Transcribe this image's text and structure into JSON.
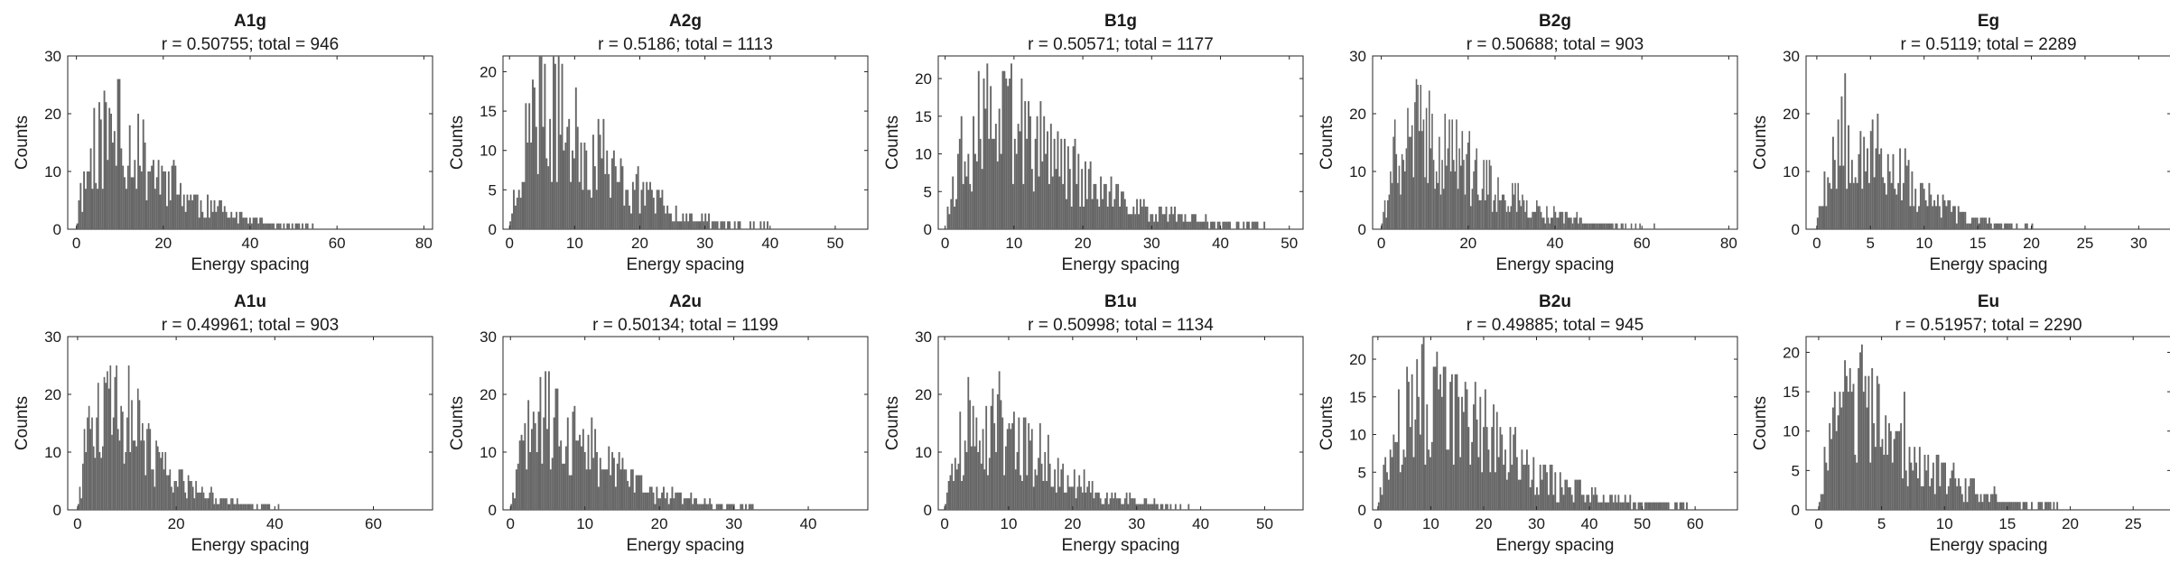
{
  "chart_data": [
    {
      "type": "bar",
      "title": "A1g",
      "subtitle": "r = 0.50755; total = 946",
      "xlabel": "Energy spacing",
      "ylabel": "Counts",
      "xlim": [
        -2,
        82
      ],
      "ylim": [
        0,
        30
      ],
      "xticks": [
        0,
        20,
        40,
        60,
        80
      ],
      "yticks": [
        0,
        10,
        20,
        30
      ],
      "bar_color": "#666666",
      "seed": 11,
      "hist": {
        "n": 946,
        "mode": 8,
        "xmax": 78,
        "peak": 26
      }
    },
    {
      "type": "bar",
      "title": "A2g",
      "subtitle": "r = 0.5186; total = 1113",
      "xlabel": "Energy spacing",
      "ylabel": "Counts",
      "xlim": [
        -1,
        55
      ],
      "ylim": [
        0,
        22
      ],
      "xticks": [
        0,
        10,
        20,
        30,
        40,
        50
      ],
      "yticks": [
        0,
        5,
        10,
        15,
        20
      ],
      "bar_color": "#666666",
      "seed": 23,
      "hist": {
        "n": 1113,
        "mode": 6,
        "xmax": 53,
        "peak": 22
      }
    },
    {
      "type": "bar",
      "title": "B1g",
      "subtitle": "r = 0.50571; total = 1177",
      "xlabel": "Energy spacing",
      "ylabel": "Counts",
      "xlim": [
        -1,
        52
      ],
      "ylim": [
        0,
        23
      ],
      "xticks": [
        0,
        10,
        20,
        30,
        40,
        50
      ],
      "yticks": [
        0,
        5,
        10,
        15,
        20
      ],
      "bar_color": "#666666",
      "seed": 37,
      "hist": {
        "n": 1177,
        "mode": 7,
        "xmax": 50,
        "peak": 23
      }
    },
    {
      "type": "bar",
      "title": "B2g",
      "subtitle": "r = 0.50688; total = 903",
      "xlabel": "Energy spacing",
      "ylabel": "Counts",
      "xlim": [
        -2,
        82
      ],
      "ylim": [
        0,
        30
      ],
      "xticks": [
        0,
        20,
        40,
        60,
        80
      ],
      "yticks": [
        0,
        10,
        20,
        30
      ],
      "bar_color": "#666666",
      "seed": 41,
      "hist": {
        "n": 903,
        "mode": 9,
        "xmax": 66,
        "peak": 26
      }
    },
    {
      "type": "bar",
      "title": "Eg",
      "subtitle": "r = 0.5119; total = 2289",
      "xlabel": "Energy spacing",
      "ylabel": "Counts",
      "xlim": [
        -1,
        33
      ],
      "ylim": [
        0,
        30
      ],
      "xticks": [
        0,
        5,
        10,
        15,
        20,
        25,
        30
      ],
      "yticks": [
        0,
        10,
        20,
        30
      ],
      "bar_color": "#666666",
      "seed": 53,
      "hist": {
        "n": 2289,
        "mode": 3,
        "xmax": 32,
        "peak": 27
      }
    },
    {
      "type": "bar",
      "title": "A1u",
      "subtitle": "r = 0.49961; total = 903",
      "xlabel": "Energy spacing",
      "ylabel": "Counts",
      "xlim": [
        -2,
        72
      ],
      "ylim": [
        0,
        30
      ],
      "xticks": [
        0,
        20,
        40,
        60
      ],
      "yticks": [
        0,
        10,
        20,
        30
      ],
      "bar_color": "#666666",
      "seed": 61,
      "hist": {
        "n": 903,
        "mode": 6,
        "xmax": 62,
        "peak": 27
      }
    },
    {
      "type": "bar",
      "title": "A2u",
      "subtitle": "r = 0.50134; total = 1199",
      "xlabel": "Energy spacing",
      "ylabel": "Counts",
      "xlim": [
        -1,
        48
      ],
      "ylim": [
        0,
        30
      ],
      "xticks": [
        0,
        10,
        20,
        30,
        40
      ],
      "yticks": [
        0,
        10,
        20,
        30
      ],
      "bar_color": "#666666",
      "seed": 73,
      "hist": {
        "n": 1199,
        "mode": 5,
        "xmax": 46,
        "peak": 24
      }
    },
    {
      "type": "bar",
      "title": "B1u",
      "subtitle": "r = 0.50998; total = 1134",
      "xlabel": "Energy spacing",
      "ylabel": "Counts",
      "xlim": [
        -1,
        56
      ],
      "ylim": [
        0,
        30
      ],
      "xticks": [
        0,
        10,
        20,
        30,
        40,
        50
      ],
      "yticks": [
        0,
        10,
        20,
        30
      ],
      "bar_color": "#666666",
      "seed": 89,
      "hist": {
        "n": 1134,
        "mode": 6,
        "xmax": 51,
        "peak": 24
      }
    },
    {
      "type": "bar",
      "title": "B2u",
      "subtitle": "r = 0.49885; total = 945",
      "xlabel": "Energy spacing",
      "ylabel": "Counts",
      "xlim": [
        -1,
        68
      ],
      "ylim": [
        0,
        23
      ],
      "xticks": [
        0,
        10,
        20,
        30,
        40,
        50,
        60
      ],
      "yticks": [
        0,
        5,
        10,
        15,
        20
      ],
      "bar_color": "#666666",
      "seed": 97,
      "hist": {
        "n": 945,
        "mode": 9,
        "xmax": 63,
        "peak": 23
      }
    },
    {
      "type": "bar",
      "title": "Eu",
      "subtitle": "r = 0.51957; total = 2290",
      "xlabel": "Energy spacing",
      "ylabel": "Counts",
      "xlim": [
        -1,
        28
      ],
      "ylim": [
        0,
        22
      ],
      "xticks": [
        0,
        5,
        10,
        15,
        20,
        25
      ],
      "yticks": [
        0,
        5,
        10,
        15,
        20
      ],
      "bar_color": "#666666",
      "seed": 103,
      "hist": {
        "n": 2290,
        "mode": 3,
        "xmax": 27,
        "peak": 21
      }
    }
  ]
}
